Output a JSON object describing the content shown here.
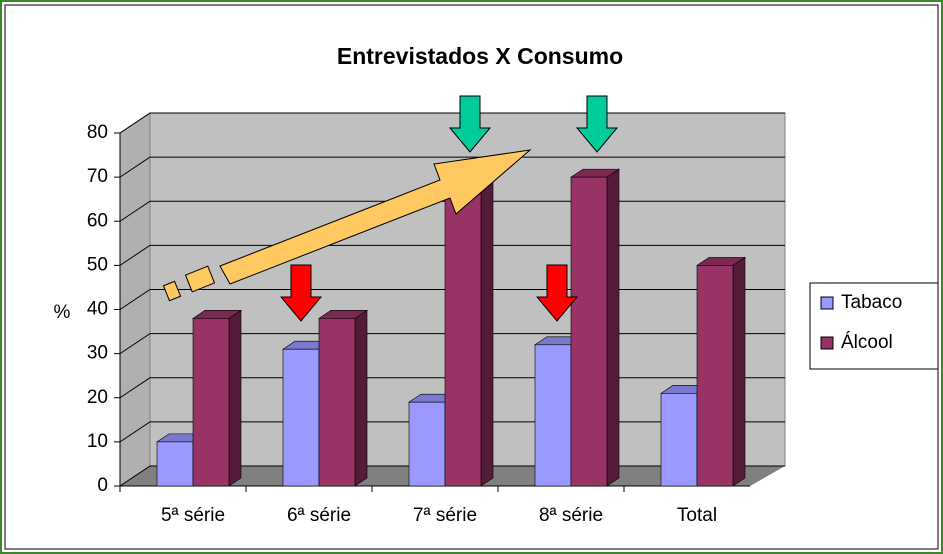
{
  "chart_data": {
    "type": "bar3d",
    "title": "Entrevistados X Consumo",
    "y_label": "%",
    "categories": [
      "5ª série",
      "6ª série",
      "7ª série",
      "8ª série",
      "Total"
    ],
    "series": [
      {
        "name": "Tabaco",
        "color": "#9999ff",
        "values": [
          10,
          31,
          19,
          32,
          21
        ]
      },
      {
        "name": "Álcool",
        "color": "#993366",
        "values": [
          38,
          38,
          70,
          70,
          50
        ]
      }
    ],
    "ylim": [
      0,
      80
    ],
    "yticks": [
      0,
      10,
      20,
      30,
      40,
      50,
      60,
      70,
      80
    ],
    "grid": true,
    "legend": "right"
  }
}
